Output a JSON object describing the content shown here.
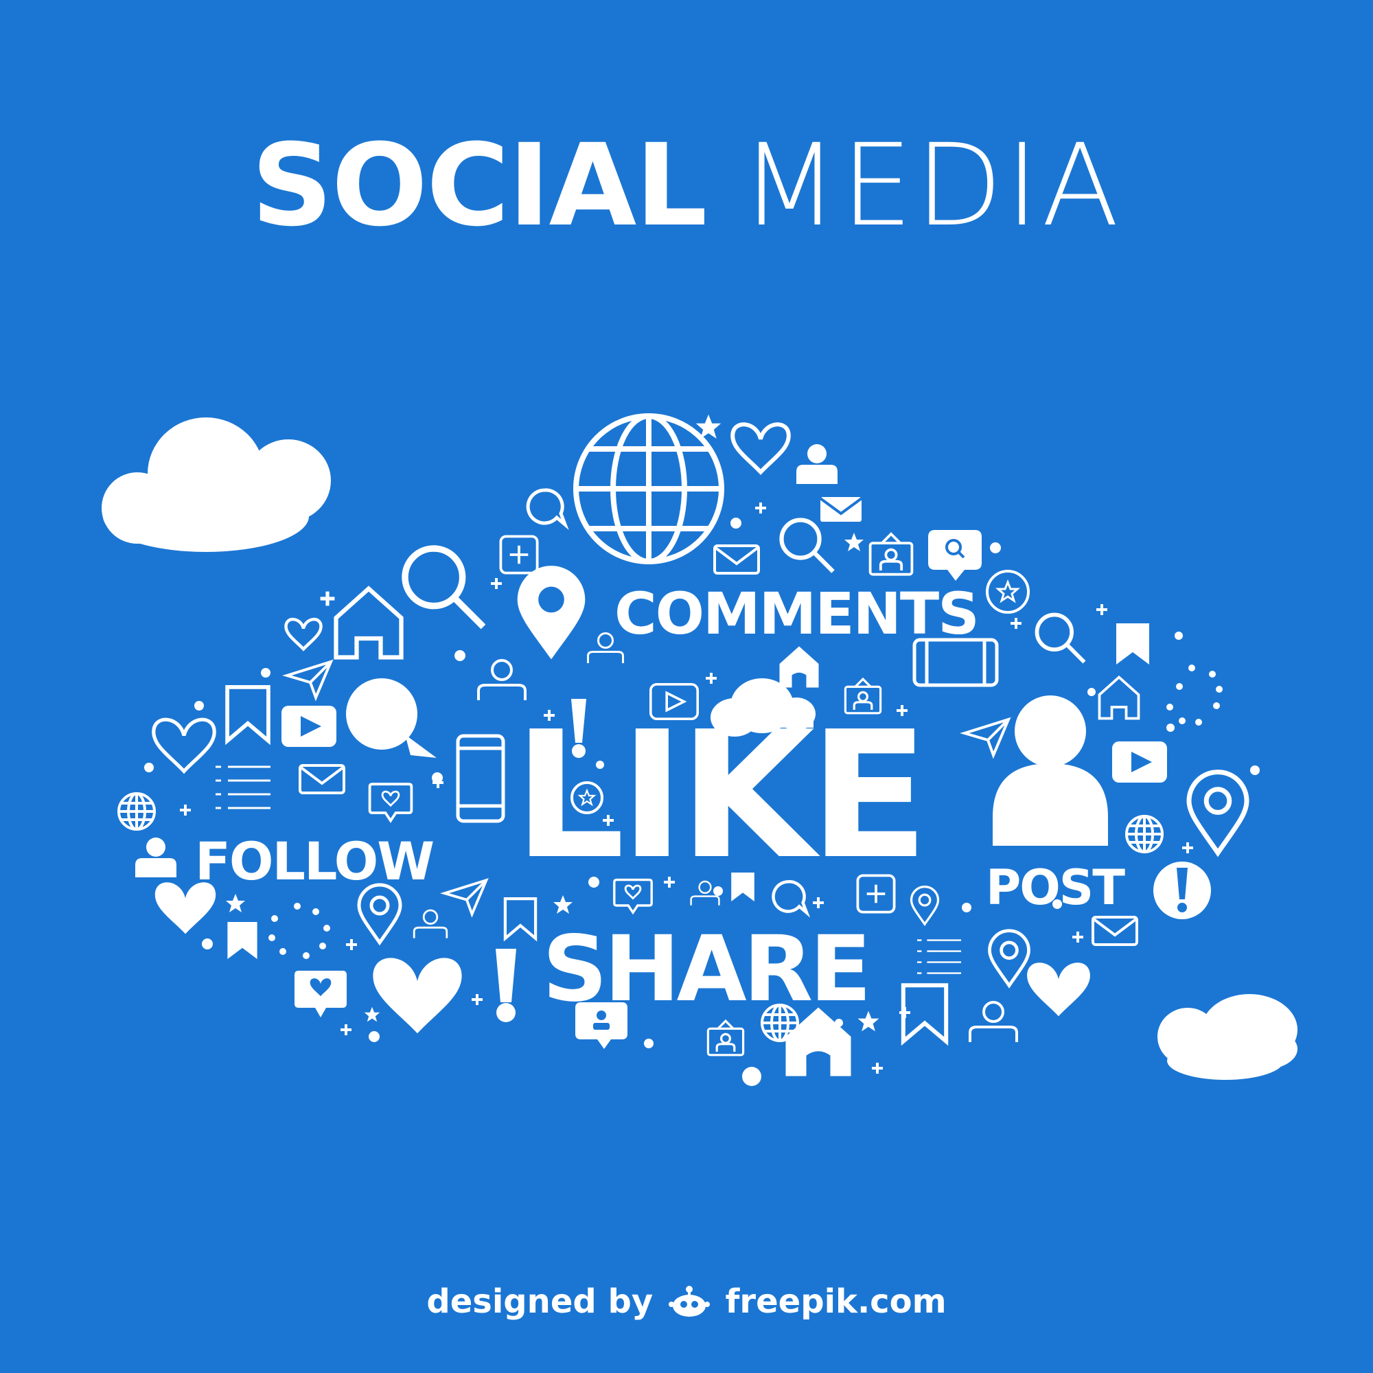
{
  "title": {
    "bold": "SOCIAL",
    "light": "MEDIA"
  },
  "words": {
    "comments": "COMMENTS",
    "like": "LIKE",
    "follow": "FOLLOW",
    "post": "POST",
    "share": "SHARE"
  },
  "credit": {
    "prefix": "designed by",
    "site": "freepik.com"
  },
  "colors": {
    "background": "#1b76d3",
    "foreground": "#ffffff"
  },
  "icons": [
    "cloud-icon",
    "globe-icon",
    "heart-icon",
    "user-icon",
    "envelope-icon",
    "search-icon",
    "location-pin-icon",
    "speech-bubble-icon",
    "home-icon",
    "video-play-icon",
    "bookmark-icon",
    "paper-plane-icon",
    "smartphone-icon",
    "exclamation-icon",
    "star-icon",
    "plus-icon",
    "list-icon",
    "photo-user-icon",
    "add-square-icon",
    "dot-circle-icon"
  ]
}
